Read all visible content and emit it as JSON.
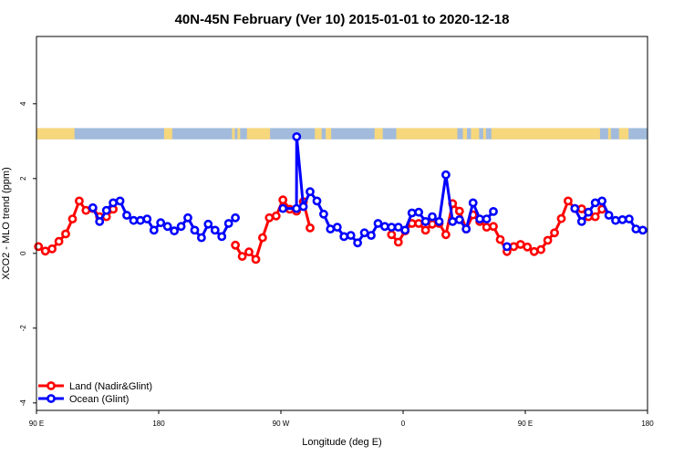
{
  "chart_data": {
    "type": "line",
    "title": "40N-45N February (Ver 10)   2015-01-01 to 2020-12-18",
    "xlabel": "Longitude (deg E)",
    "ylabel": "XCO2 - MLO trend (ppm)",
    "xlim": [
      90,
      540
    ],
    "ylim": [
      -4.2,
      5.8
    ],
    "xticks": [
      {
        "value": 90,
        "label": "90 E"
      },
      {
        "value": 180,
        "label": "180"
      },
      {
        "value": 270,
        "label": "90 W"
      },
      {
        "value": 360,
        "label": "0"
      },
      {
        "value": 450,
        "label": "90 E"
      },
      {
        "value": 540,
        "label": "180"
      }
    ],
    "yticks": [
      {
        "value": -4,
        "label": "-4"
      },
      {
        "value": -2,
        "label": "-2"
      },
      {
        "value": 0,
        "label": "0"
      },
      {
        "value": 2,
        "label": "2"
      },
      {
        "value": 4,
        "label": "4"
      }
    ],
    "land_ocean_strip": {
      "y_range": [
        3.05,
        3.35
      ],
      "ocean_color": "#a2bbdc",
      "land_color": "#f7d77c",
      "land_segments": [
        [
          90,
          118
        ],
        [
          184,
          190
        ],
        [
          234,
          236
        ],
        [
          238,
          240
        ],
        [
          245,
          262
        ],
        [
          295,
          300
        ],
        [
          303,
          306
        ],
        [
          305,
          307
        ],
        [
          339,
          345
        ],
        [
          355,
          400
        ],
        [
          404,
          407
        ],
        [
          412,
          416
        ],
        [
          410,
          414
        ],
        [
          419,
          421
        ],
        [
          425,
          505
        ],
        [
          511,
          513
        ],
        [
          519,
          526
        ]
      ]
    },
    "series": [
      {
        "name": "Land (Nadir&Glint)",
        "color": "#ff0000",
        "segments": [
          [
            [
              91.5,
              0.18
            ],
            [
              96.5,
              0.06
            ],
            [
              101.5,
              0.12
            ],
            [
              106.5,
              0.32
            ],
            [
              111.5,
              0.52
            ],
            [
              116.5,
              0.92
            ],
            [
              121.5,
              1.4
            ],
            [
              126.5,
              1.15
            ],
            [
              131.5,
              1.2
            ],
            [
              136.5,
              0.98
            ],
            [
              141.5,
              0.98
            ],
            [
              146.5,
              1.18
            ]
          ],
          [
            [
              236.5,
              0.22
            ],
            [
              241.5,
              -0.08
            ],
            [
              246.5,
              0.04
            ],
            [
              251.5,
              -0.16
            ],
            [
              256.5,
              0.42
            ],
            [
              261.5,
              0.95
            ],
            [
              266.5,
              1.0
            ],
            [
              271.5,
              1.43
            ],
            [
              276.5,
              1.18
            ],
            [
              281.5,
              1.13
            ],
            [
              286.5,
              1.38
            ],
            [
              291.5,
              0.68
            ]
          ],
          [
            [
              351.5,
              0.5
            ],
            [
              356.5,
              0.3
            ],
            [
              361.5,
              0.6
            ],
            [
              366.5,
              0.8
            ],
            [
              371.5,
              0.8
            ],
            [
              376.5,
              0.62
            ],
            [
              381.5,
              0.78
            ],
            [
              386.5,
              0.8
            ],
            [
              391.5,
              0.5
            ],
            [
              396.5,
              1.33
            ],
            [
              401.5,
              1.13
            ],
            [
              406.5,
              0.65
            ],
            [
              411.5,
              1.03
            ],
            [
              416.5,
              0.85
            ],
            [
              421.5,
              0.7
            ],
            [
              426.5,
              0.72
            ],
            [
              431.5,
              0.37
            ],
            [
              436.5,
              0.05
            ]
          ],
          [
            [
              441.5,
              0.18
            ],
            [
              446.5,
              0.24
            ],
            [
              451.5,
              0.17
            ],
            [
              456.5,
              0.05
            ],
            [
              461.5,
              0.1
            ],
            [
              466.5,
              0.35
            ],
            [
              471.5,
              0.55
            ],
            [
              476.5,
              0.93
            ],
            [
              481.5,
              1.4
            ],
            [
              486.5,
              1.2
            ],
            [
              491.5,
              1.19
            ],
            [
              496.5,
              0.98
            ],
            [
              501.5,
              0.98
            ],
            [
              506.5,
              1.18
            ]
          ]
        ]
      },
      {
        "name": "Ocean (Glint)",
        "color": "#0000ff",
        "segments": [
          [
            [
              131.5,
              1.22
            ],
            [
              136.5,
              0.85
            ],
            [
              141.5,
              1.15
            ],
            [
              146.5,
              1.35
            ],
            [
              151.5,
              1.4
            ],
            [
              156.5,
              1.02
            ],
            [
              161.5,
              0.88
            ],
            [
              166.5,
              0.88
            ],
            [
              171.5,
              0.92
            ],
            [
              176.5,
              0.62
            ],
            [
              181.5,
              0.82
            ],
            [
              186.5,
              0.72
            ],
            [
              191.5,
              0.6
            ],
            [
              196.5,
              0.72
            ],
            [
              201.5,
              0.95
            ],
            [
              206.5,
              0.62
            ],
            [
              211.5,
              0.42
            ],
            [
              216.5,
              0.78
            ],
            [
              221.5,
              0.62
            ],
            [
              226.5,
              0.45
            ],
            [
              231.5,
              0.8
            ],
            [
              236.5,
              0.95
            ]
          ],
          [
            [
              271.5,
              1.2
            ],
            [
              281.5,
              1.2
            ],
            [
              281.6,
              3.12
            ],
            [
              286.5,
              1.25
            ],
            [
              291.5,
              1.65
            ],
            [
              296.5,
              1.4
            ],
            [
              301.5,
              1.05
            ],
            [
              306.5,
              0.65
            ],
            [
              311.5,
              0.7
            ],
            [
              316.5,
              0.45
            ],
            [
              321.5,
              0.48
            ],
            [
              326.5,
              0.28
            ],
            [
              331.5,
              0.55
            ],
            [
              336.5,
              0.48
            ],
            [
              341.5,
              0.8
            ],
            [
              346.5,
              0.72
            ],
            [
              351.5,
              0.7
            ],
            [
              356.5,
              0.7
            ],
            [
              361.5,
              0.62
            ],
            [
              366.5,
              1.08
            ],
            [
              371.5,
              1.1
            ],
            [
              376.5,
              0.85
            ],
            [
              381.5,
              0.98
            ],
            [
              386.5,
              0.85
            ],
            [
              391.5,
              2.1
            ],
            [
              396.5,
              0.85
            ],
            [
              401.5,
              0.9
            ],
            [
              406.5,
              0.65
            ],
            [
              411.5,
              1.35
            ],
            [
              416.5,
              0.92
            ],
            [
              421.5,
              0.92
            ],
            [
              426.5,
              1.12
            ]
          ],
          [
            [
              436.5,
              0.18
            ]
          ],
          [
            [
              486.5,
              1.2
            ],
            [
              491.5,
              0.85
            ],
            [
              496.5,
              1.1
            ],
            [
              501.5,
              1.35
            ],
            [
              506.5,
              1.4
            ],
            [
              511.5,
              1.02
            ],
            [
              516.5,
              0.88
            ],
            [
              521.5,
              0.9
            ],
            [
              526.5,
              0.92
            ],
            [
              531.5,
              0.65
            ],
            [
              536.5,
              0.62
            ]
          ]
        ]
      }
    ],
    "legend_position": "bottom-left",
    "grid": false
  }
}
